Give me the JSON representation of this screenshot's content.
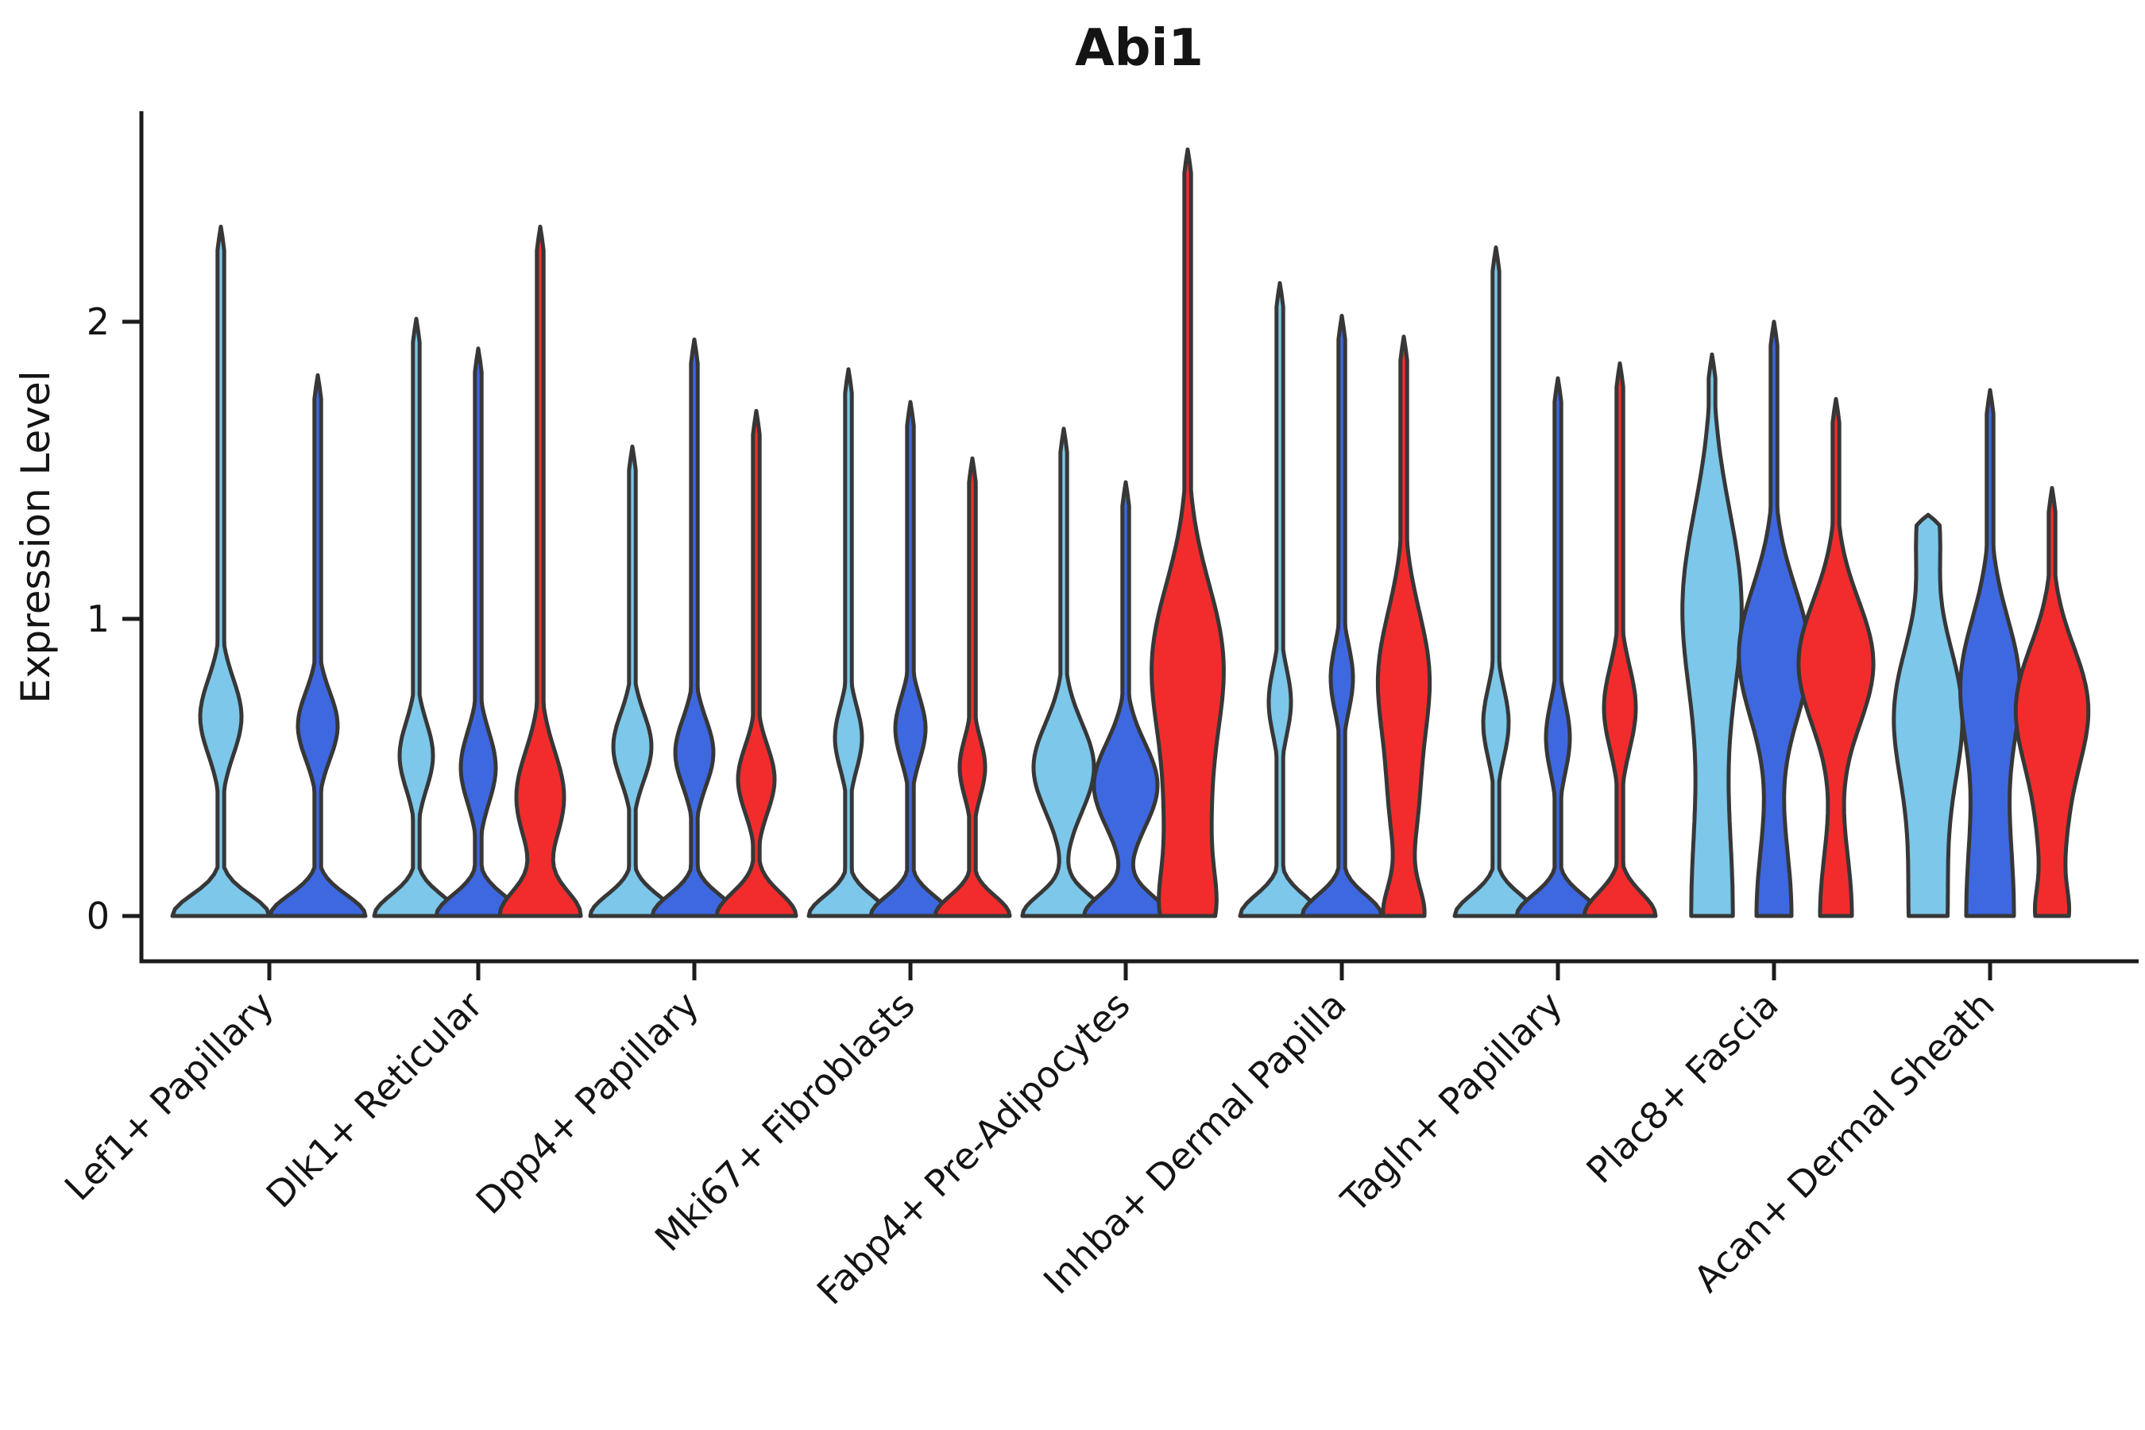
{
  "title": "Abi1",
  "y_axis": {
    "label": "Expression Level",
    "tick_labels": [
      "0",
      "1",
      "2"
    ]
  },
  "chart_data": {
    "type": "violin",
    "title": "Abi1",
    "xlabel": "",
    "ylabel": "Expression Level",
    "ylim": [
      0,
      2.72
    ],
    "yticks": [
      0,
      1,
      2
    ],
    "grid": false,
    "legend_position": "none",
    "stroke_color": "#373737",
    "axis_color": "#1c1c1c",
    "series_colors": {
      "light_blue": "#7CC7EA",
      "blue": "#3E68E0",
      "red": "#F22C2C"
    },
    "categories": [
      "Lef1+ Papillary",
      "Dlk1+ Reticular",
      "Dpp4+ Papillary",
      "Mki67+ Fibroblasts",
      "Fabp4+ Pre-Adipocytes",
      "Inhba+ Dermal Papilla",
      "Tagln+ Papillary",
      "Plac8+ Fascia",
      "Acan+ Dermal Sheath"
    ],
    "groups": [
      {
        "category": "Lef1+ Papillary",
        "tick_x": 339,
        "violins": [
          {
            "color": "light_blue",
            "x": 278,
            "max": 2.32,
            "kde": [
              [
                61,
                0,
                0.1
              ],
              [
                26,
                0.67,
                0.18
              ]
            ]
          },
          {
            "color": "blue",
            "x": 400,
            "max": 1.82,
            "kde": [
              [
                60,
                0,
                0.1
              ],
              [
                25,
                0.64,
                0.16
              ]
            ]
          }
        ]
      },
      {
        "category": "Dlk1+ Reticular",
        "tick_x": 602,
        "violins": [
          {
            "color": "light_blue",
            "x": 524,
            "max": 2.01,
            "kde": [
              [
                53,
                0,
                0.1
              ],
              [
                21,
                0.54,
                0.16
              ]
            ]
          },
          {
            "color": "blue",
            "x": 602,
            "max": 1.91,
            "kde": [
              [
                53,
                0,
                0.1
              ],
              [
                22,
                0.5,
                0.17
              ]
            ]
          },
          {
            "color": "red",
            "x": 680,
            "max": 2.32,
            "kde": [
              [
                50,
                0,
                0.12
              ],
              [
                30,
                0.4,
                0.22
              ]
            ]
          }
        ]
      },
      {
        "category": "Dpp4+ Papillary",
        "tick_x": 874,
        "violins": [
          {
            "color": "light_blue",
            "x": 796,
            "max": 1.58,
            "kde": [
              [
                53,
                0,
                0.1
              ],
              [
                24,
                0.57,
                0.16
              ]
            ]
          },
          {
            "color": "blue",
            "x": 874,
            "max": 1.94,
            "kde": [
              [
                53,
                0,
                0.1
              ],
              [
                24,
                0.55,
                0.16
              ]
            ]
          },
          {
            "color": "red",
            "x": 952,
            "max": 1.7,
            "kde": [
              [
                50,
                0,
                0.11
              ],
              [
                23,
                0.46,
                0.16
              ]
            ]
          }
        ]
      },
      {
        "category": "Mki67+ Fibroblasts",
        "tick_x": 1146,
        "violins": [
          {
            "color": "light_blue",
            "x": 1068,
            "max": 1.84,
            "kde": [
              [
                50,
                0,
                0.095
              ],
              [
                17,
                0.6,
                0.15
              ]
            ]
          },
          {
            "color": "blue",
            "x": 1146,
            "max": 1.73,
            "kde": [
              [
                50,
                0,
                0.095
              ],
              [
                19,
                0.63,
                0.15
              ]
            ]
          },
          {
            "color": "red",
            "x": 1224,
            "max": 1.54,
            "kde": [
              [
                47,
                0,
                0.095
              ],
              [
                16,
                0.5,
                0.14
              ]
            ]
          }
        ]
      },
      {
        "category": "Fabp4+ Pre-Adipocytes",
        "tick_x": 1417,
        "violins": [
          {
            "color": "light_blue",
            "x": 1339,
            "max": 1.64,
            "kde": [
              [
                52,
                0,
                0.1
              ],
              [
                38,
                0.5,
                0.21
              ]
            ]
          },
          {
            "color": "blue",
            "x": 1417,
            "max": 1.46,
            "kde": [
              [
                52,
                0,
                0.1
              ],
              [
                40,
                0.44,
                0.2
              ]
            ]
          },
          {
            "color": "red",
            "x": 1495,
            "max": 2.58,
            "kde": [
              [
                20,
                0,
                0.18
              ],
              [
                24,
                0.25,
                0.35
              ],
              [
                44,
                0.85,
                0.38
              ]
            ]
          }
        ]
      },
      {
        "category": "Inhba+ Dermal Papilla",
        "tick_x": 1689,
        "violins": [
          {
            "color": "light_blue",
            "x": 1611,
            "max": 2.13,
            "kde": [
              [
                50,
                0,
                0.1
              ],
              [
                14,
                0.72,
                0.16
              ]
            ]
          },
          {
            "color": "blue",
            "x": 1689,
            "max": 2.02,
            "kde": [
              [
                50,
                0,
                0.1
              ],
              [
                14,
                0.8,
                0.16
              ]
            ]
          },
          {
            "color": "red",
            "x": 1767,
            "max": 1.95,
            "kde": [
              [
                24,
                0,
                0.14
              ],
              [
                14,
                0.35,
                0.25
              ],
              [
                32,
                0.8,
                0.32
              ]
            ]
          }
        ]
      },
      {
        "category": "Tagln+ Papillary",
        "tick_x": 1961,
        "violins": [
          {
            "color": "light_blue",
            "x": 1883,
            "max": 2.25,
            "kde": [
              [
                52,
                0,
                0.1
              ],
              [
                16,
                0.65,
                0.17
              ]
            ]
          },
          {
            "color": "blue",
            "x": 1961,
            "max": 1.81,
            "kde": [
              [
                52,
                0,
                0.1
              ],
              [
                15,
                0.6,
                0.17
              ]
            ]
          },
          {
            "color": "red",
            "x": 2039,
            "max": 1.86,
            "kde": [
              [
                45,
                0,
                0.11
              ],
              [
                20,
                0.7,
                0.2
              ]
            ]
          }
        ]
      },
      {
        "category": "Plac8+ Fascia",
        "tick_x": 2233,
        "violins": [
          {
            "color": "light_blue",
            "x": 2155,
            "max": 1.89,
            "kde": [
              [
                26,
                0,
                0.6
              ],
              [
                36,
                1.05,
                0.45
              ]
            ]
          },
          {
            "color": "blue",
            "x": 2233,
            "max": 2.0,
            "kde": [
              [
                22,
                0,
                0.4
              ],
              [
                44,
                0.88,
                0.32
              ]
            ]
          },
          {
            "color": "red",
            "x": 2311,
            "max": 1.74,
            "kde": [
              [
                20,
                0,
                0.35
              ],
              [
                47,
                0.85,
                0.3
              ]
            ]
          }
        ]
      },
      {
        "category": "Acan+ Dermal Sheath",
        "tick_x": 2505,
        "violins": [
          {
            "color": "light_blue",
            "x": 2427,
            "max": 1.35,
            "cap": "blunt",
            "kde": [
              [
                24,
                0,
                0.55
              ],
              [
                38,
                0.7,
                0.34
              ],
              [
                13,
                1.3,
                0.22
              ]
            ]
          },
          {
            "color": "blue",
            "x": 2505,
            "max": 1.77,
            "kde": [
              [
                30,
                0,
                0.6
              ],
              [
                32,
                0.8,
                0.3
              ]
            ]
          },
          {
            "color": "red",
            "x": 2583,
            "max": 1.44,
            "kde": [
              [
                12,
                0,
                0.12
              ],
              [
                16,
                0.3,
                0.4
              ],
              [
                40,
                0.72,
                0.28
              ]
            ]
          }
        ]
      }
    ]
  }
}
